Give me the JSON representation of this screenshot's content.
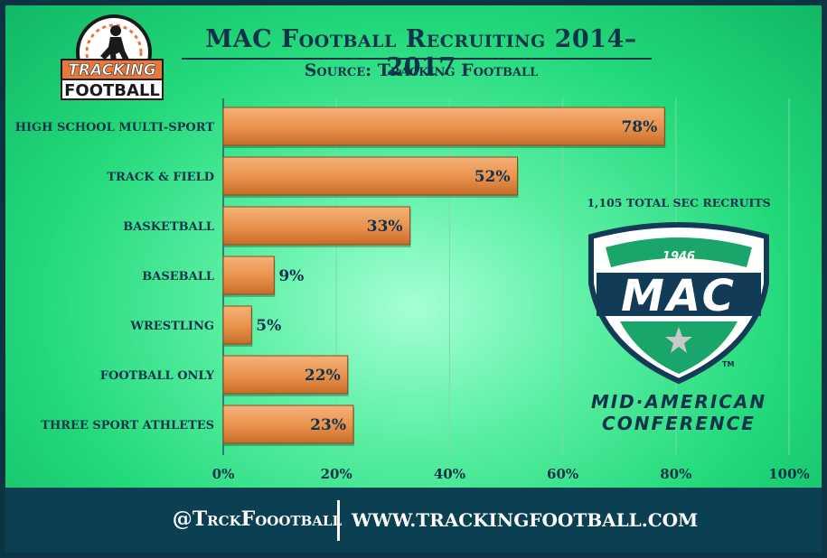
{
  "header": {
    "title": "MAC Football Recruiting 2014–2017",
    "subtitle": "Source: Tracking Football"
  },
  "logo_brand": {
    "line1": "TRACKING",
    "line2": "FOOTBALL"
  },
  "side_note": {
    "total_recruits": "1,105 TOTAL SEC RECRUITS",
    "conference_year": "1946",
    "conference_abbr": "MAC",
    "conference_line1": "MID·AMERICAN",
    "conference_line2": "CONFERENCE",
    "trademark": "TM"
  },
  "footer": {
    "handle": "@TrckFoootball",
    "website": "WWW.TRACKINGFOOTBALL.COM"
  },
  "colors": {
    "bar_fill": "#e8914a",
    "bar_stroke": "#8a4a1a",
    "text_navy": "#10324a",
    "footer_bg": "#0b3f52",
    "mac_navy": "#123b57",
    "mac_green": "#1aa56a"
  },
  "chart_data": {
    "type": "bar",
    "orientation": "horizontal",
    "categories": [
      "HIGH SCHOOL MULTI-SPORT",
      "TRACK & FIELD",
      "BASKETBALL",
      "BASEBALL",
      "WRESTLING",
      "FOOTBALL ONLY",
      "THREE SPORT ATHLETES"
    ],
    "values": [
      78,
      52,
      33,
      9,
      5,
      22,
      23
    ],
    "value_labels": [
      "78%",
      "52%",
      "33%",
      "9%",
      "5%",
      "22%",
      "23%"
    ],
    "xlim": [
      0,
      100
    ],
    "xticks": [
      0,
      20,
      40,
      60,
      80,
      100
    ],
    "xtick_labels": [
      "0%",
      "20%",
      "40%",
      "60%",
      "80%",
      "100%"
    ],
    "grid": "vertical",
    "legend": "none"
  }
}
